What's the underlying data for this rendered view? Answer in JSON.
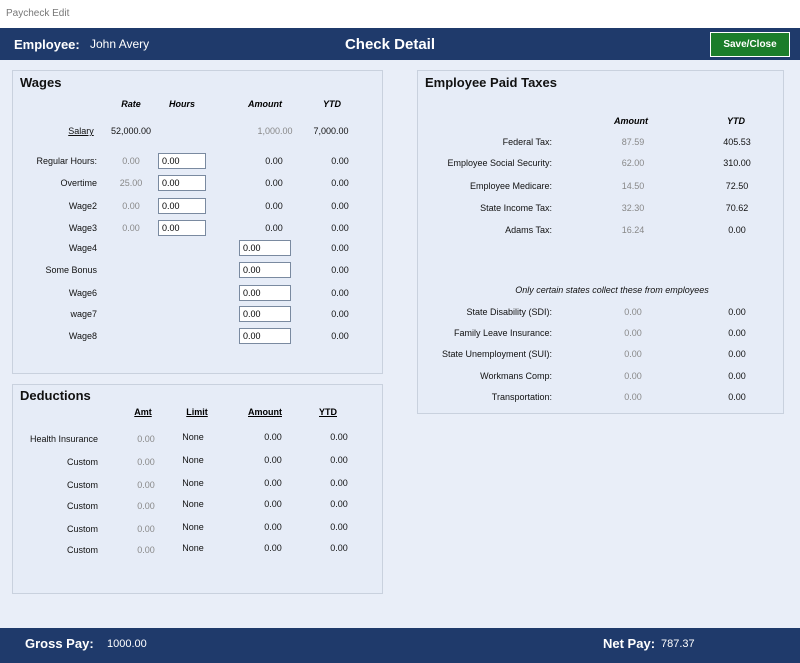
{
  "window_title": "Paycheck Edit",
  "header": {
    "employee_label": "Employee:",
    "employee_name": "John Avery",
    "title": "Check Detail",
    "button": "Save/Close"
  },
  "wages": {
    "title": "Wages",
    "columns": [
      "Rate",
      "Hours",
      "Amount",
      "YTD"
    ],
    "rows": [
      {
        "label": "Salary",
        "rate": "52,000.00",
        "amount": "1,000.00",
        "ytd": "7,000.00"
      },
      {
        "label": "Regular Hours:",
        "rate": "0.00",
        "hours": "0.00",
        "amount": "0.00",
        "ytd": "0.00"
      },
      {
        "label": "Overtime",
        "rate": "25.00",
        "hours": "0.00",
        "amount": "0.00",
        "ytd": "0.00"
      },
      {
        "label": "Wage2",
        "rate": "0.00",
        "hours": "0.00",
        "amount": "0.00",
        "ytd": "0.00"
      },
      {
        "label": "Wage3",
        "rate": "0.00",
        "hours": "0.00",
        "amount": "0.00",
        "ytd": "0.00"
      },
      {
        "label": "Wage4",
        "amount": "0.00",
        "ytd": "0.00"
      },
      {
        "label": "Some Bonus",
        "amount": "0.00",
        "ytd": "0.00"
      },
      {
        "label": "Wage6",
        "amount": "0.00",
        "ytd": "0.00"
      },
      {
        "label": "wage7",
        "amount": "0.00",
        "ytd": "0.00"
      },
      {
        "label": "Wage8",
        "amount": "0.00",
        "ytd": "0.00"
      }
    ]
  },
  "deductions": {
    "title": "Deductions",
    "columns": [
      "Amt",
      "Limit",
      "Amount",
      "YTD"
    ],
    "rows": [
      {
        "label": "Health Insurance",
        "amt": "0.00",
        "limit": "None",
        "amount": "0.00",
        "ytd": "0.00"
      },
      {
        "label": "Custom",
        "amt": "0.00",
        "limit": "None",
        "amount": "0.00",
        "ytd": "0.00"
      },
      {
        "label": "Custom",
        "amt": "0.00",
        "limit": "None",
        "amount": "0.00",
        "ytd": "0.00"
      },
      {
        "label": "Custom",
        "amt": "0.00",
        "limit": "None",
        "amount": "0.00",
        "ytd": "0.00"
      },
      {
        "label": "Custom",
        "amt": "0.00",
        "limit": "None",
        "amount": "0.00",
        "ytd": "0.00"
      },
      {
        "label": "Custom",
        "amt": "0.00",
        "limit": "None",
        "amount": "0.00",
        "ytd": "0.00"
      }
    ]
  },
  "taxes": {
    "title": "Employee Paid Taxes",
    "columns": [
      "Amount",
      "YTD"
    ],
    "rows": [
      {
        "label": "Federal Tax:",
        "amount": "87.59",
        "ytd": "405.53"
      },
      {
        "label": "Employee Social Security:",
        "amount": "62.00",
        "ytd": "310.00"
      },
      {
        "label": "Employee Medicare:",
        "amount": "14.50",
        "ytd": "72.50"
      },
      {
        "label": "State Income Tax:",
        "amount": "32.30",
        "ytd": "70.62"
      },
      {
        "label": "Adams Tax:",
        "amount": "16.24",
        "ytd": "0.00"
      }
    ],
    "note": "Only certain states collect these from employees",
    "state_rows": [
      {
        "label": "State Disability (SDI):",
        "amount": "0.00",
        "ytd": "0.00"
      },
      {
        "label": "Family Leave Insurance:",
        "amount": "0.00",
        "ytd": "0.00"
      },
      {
        "label": "State Unemployment (SUI):",
        "amount": "0.00",
        "ytd": "0.00"
      },
      {
        "label": "Workmans Comp:",
        "amount": "0.00",
        "ytd": "0.00"
      },
      {
        "label": "Transportation:",
        "amount": "0.00",
        "ytd": "0.00"
      }
    ]
  },
  "footer": {
    "gross_label": "Gross Pay:",
    "gross_value": "1000.00",
    "net_label": "Net Pay:",
    "net_value": "787.37"
  }
}
